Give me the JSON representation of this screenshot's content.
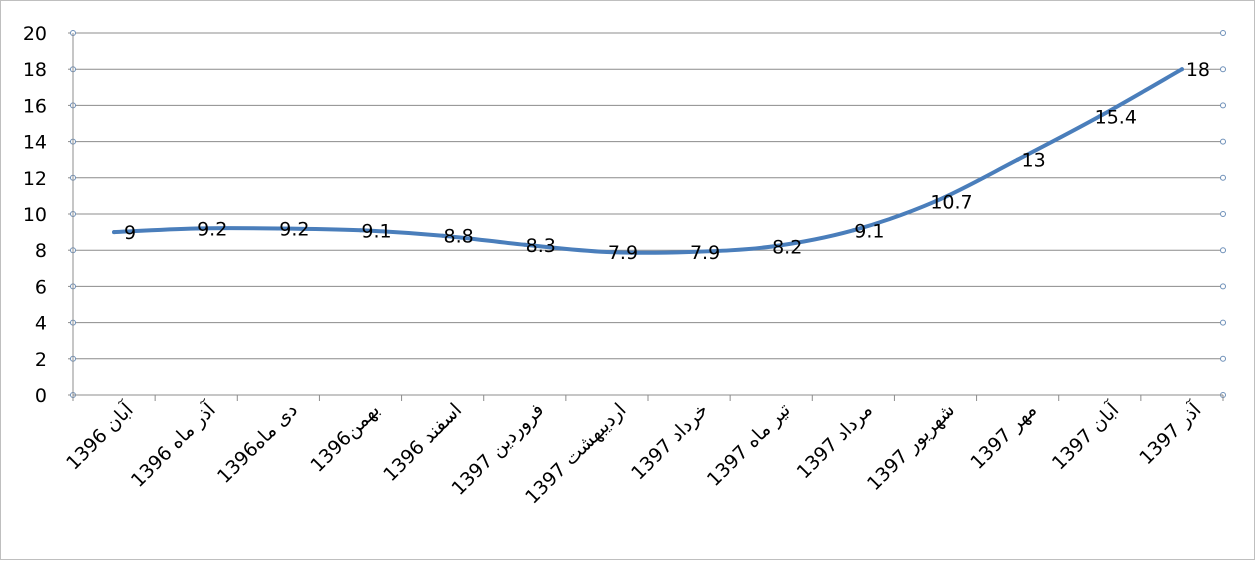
{
  "chart_data": {
    "type": "line",
    "categories": [
      "آبان 1396",
      "آذر ماه 1396",
      "دی ماه1396",
      "بهمن1396",
      "اسفند 1396",
      "فروردین 1397",
      "اردیبهشت 1397",
      "خرداد 1397",
      "تیر ماه 1397",
      "مرداد 1397",
      "شهریور 1397",
      "مهر 1397",
      "آبان 1397",
      "آذر 1397"
    ],
    "values": [
      9,
      9.2,
      9.2,
      9.1,
      8.8,
      8.3,
      7.9,
      7.9,
      8.2,
      9.1,
      10.7,
      13,
      15.4,
      18
    ],
    "data_labels": [
      "9",
      "9.2",
      "9.2",
      "9.1",
      "8.8",
      "8.3",
      "7.9",
      "7.9",
      "8.2",
      "9.1",
      "10.7",
      "13",
      "15.4",
      "18"
    ],
    "y_ticks": [
      "0",
      "2",
      "4",
      "6",
      "8",
      "10",
      "12",
      "14",
      "16",
      "18",
      "20"
    ],
    "ylim": [
      0,
      20
    ],
    "grid": true,
    "legend": "none",
    "colors": {
      "line": "#4a7ebb",
      "grid": "#8c8c8c",
      "axis": "#8c8c8c",
      "marker": "#6d8fb8"
    }
  }
}
